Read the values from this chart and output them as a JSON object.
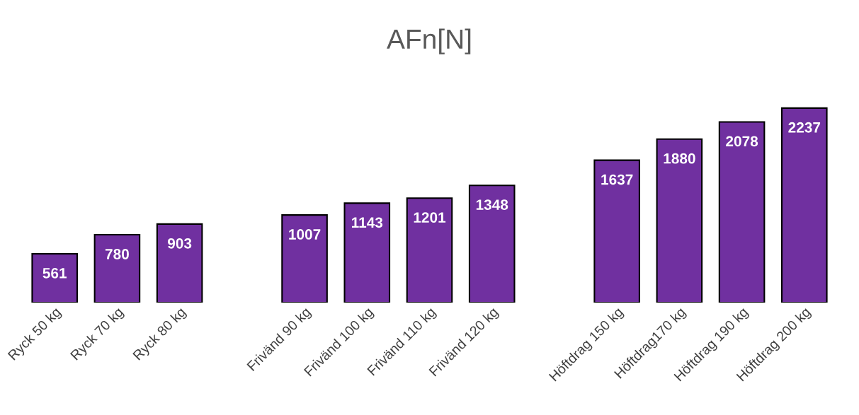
{
  "chart_data": {
    "type": "bar",
    "title": "AFn[N]",
    "categories": [
      "Ryck 50 kg",
      "Ryck 70 kg",
      "Ryck 80 kg",
      null,
      "Frivänd 90 kg",
      "Frivänd 100 kg",
      "Frivänd 110 kg",
      "Frivänd 120 kg",
      null,
      "Höftdrag 150 kg",
      "Höftdrag170 kg",
      "Höftdrag 190 kg",
      "Höftdrag 200 kg"
    ],
    "values": [
      561,
      780,
      903,
      null,
      1007,
      1143,
      1201,
      1348,
      null,
      1637,
      1880,
      2078,
      2237
    ],
    "color": "#7030a0",
    "data_labels": true,
    "tick_labels": "x",
    "grid": false,
    "legend": false
  }
}
